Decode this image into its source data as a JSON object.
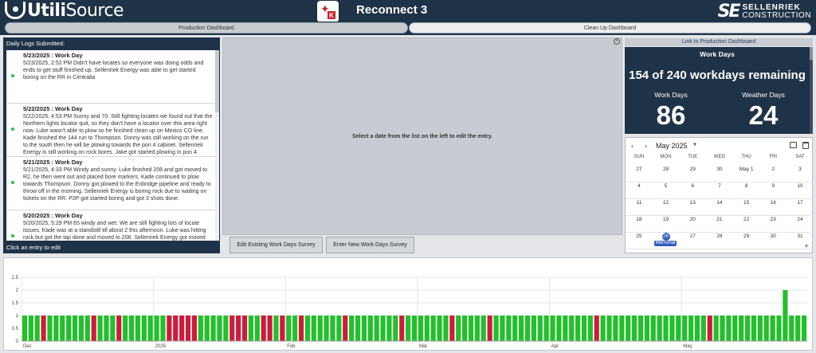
{
  "header": {
    "logo_left_a": "Utili",
    "logo_left_b": "Source",
    "app_title": "Reconnect 3",
    "app_icon_letter": "K",
    "logo_right_mark": "SE",
    "logo_right_name1": "SELLENRIEK",
    "logo_right_name2": "CONSTRUCTION"
  },
  "tabs": {
    "production": "Production Dashboard",
    "cleanup": "Clean Up Dashboard"
  },
  "logs": {
    "heading": "Daily Logs Submitted:",
    "footer": "Click an entry to edit",
    "entries": [
      {
        "title": "5/23/2025 : Work Day",
        "text": "5/23/2025, 2:52 PM Didn't have locates so everyone was doing odds and ends to get stuff finished up. Sellenriek Energy was able to get started boring on the RR in Centralia"
      },
      {
        "title": "5/22/2025 : Work Day",
        "text": "5/22/2025, 4:53 PM Sunny and 70. Still fighting locates we found out that the Northern lights locator quit, so they don't have a locator over this area right now. Luke wasn't able to plow so he finished clean up on Mexico CO line. Kade finished the 144 run to Thompson. Donny was still working on the run to the south then he will be plowing towards the pon 4 cabinet. Sellenriek Energy is still working on rock bores. Jake got started plowing in pon 4."
      },
      {
        "title": "5/21/2025 : Work Day",
        "text": "5/21/2025, 4:33 PM Windy and sunny. Luke finished 208 and got moved to R2, he then went out and placed bore markers. Kade continued to plow towards Thompson. Donny got plowed to the Enbridge pipeline and ready to throw off in the morning. Sellenriek Energy is boring rock due to waiting on tickets on the RR. P2P got started boring and got 3 shots done."
      },
      {
        "title": "5/20/2025 : Work Day",
        "text": "5/20/2025, 5:29 PM 65 windy and wet. We are still fighting lots of locate issues. Kade was at a standstill till about 2 this afternoon. Luke was hitting rock but got the tap done and moved to 208. Sellenriek Energy got moved"
      }
    ]
  },
  "middle": {
    "message": "Select a date from the list on the left to edit the entry.",
    "edit_button": "Edit Existing Work Days Survey",
    "new_button": "Enter New Work Days Survey"
  },
  "workdays": {
    "link": "Link to Production Dashboard",
    "title": "Work Days",
    "remaining": "154 of 240 workdays remaining",
    "work_label": "Work Days",
    "work_value": "86",
    "weather_label": "Weather Days",
    "weather_value": "24"
  },
  "calendar": {
    "month": "May 2025",
    "prev": "‹",
    "next": "›",
    "weekdays": [
      "SUN",
      "MON",
      "TUE",
      "WED",
      "THU",
      "FRI",
      "SAT"
    ],
    "weeks": [
      [
        "27",
        "28",
        "29",
        "30",
        "May 1",
        "2",
        "3"
      ],
      [
        "4",
        "5",
        "6",
        "7",
        "8",
        "9",
        "10"
      ],
      [
        "11",
        "12",
        "13",
        "14",
        "15",
        "16",
        "17"
      ],
      [
        "18",
        "19",
        "20",
        "21",
        "22",
        "23",
        "24"
      ],
      [
        "25",
        "26",
        "27",
        "28",
        "29",
        "30",
        "31"
      ]
    ],
    "today": "26",
    "event_label": "Memorial",
    "plus": "+"
  },
  "chart_data": {
    "type": "bar",
    "title": "",
    "xlabel": "",
    "ylabel": "",
    "ylim": [
      0,
      2.5
    ],
    "yticks": [
      "0",
      "0.5",
      "1",
      "1.5",
      "2",
      "2.5"
    ],
    "x_tick_labels": [
      "Dec",
      "2025",
      "Feb",
      "Mar",
      "Apr",
      "May"
    ],
    "grid": true,
    "series": [
      {
        "name": "",
        "color": "#22c02a",
        "values": [
          1,
          1,
          1,
          0,
          1,
          1,
          1,
          1,
          1,
          1,
          1,
          0,
          1,
          1,
          1,
          0,
          1,
          1,
          1,
          1,
          1,
          1,
          1,
          0,
          0,
          0,
          0,
          0,
          1,
          1,
          1,
          1,
          1,
          0,
          0,
          0,
          1,
          1,
          0,
          0,
          1,
          0,
          1,
          1,
          0,
          1,
          1,
          1,
          1,
          1,
          1,
          0,
          1,
          1,
          1,
          1,
          1,
          1,
          1,
          1,
          0,
          1,
          1,
          1,
          1,
          1,
          1,
          1,
          0,
          1,
          1,
          1,
          1,
          1,
          0,
          1,
          1,
          1,
          1,
          1,
          1,
          1,
          1,
          1,
          1,
          1,
          1,
          1,
          1,
          1,
          1,
          0,
          1,
          1,
          1,
          1,
          1,
          1,
          1,
          1,
          1,
          1,
          1,
          1,
          1,
          1,
          1,
          1,
          1,
          0,
          1,
          1,
          1,
          1,
          1,
          1,
          1,
          1,
          1,
          1,
          1,
          2,
          1,
          1,
          1
        ]
      },
      {
        "name": "",
        "color": "#cc1c3a",
        "values": [
          0,
          0,
          0,
          1,
          0,
          0,
          0,
          0,
          0,
          0,
          0,
          1,
          0,
          0,
          0,
          1,
          0,
          0,
          0,
          0,
          0,
          0,
          0,
          1,
          1,
          1,
          1,
          1,
          0,
          0,
          0,
          0,
          0,
          1,
          1,
          1,
          0,
          0,
          1,
          1,
          0,
          1,
          0,
          0,
          1,
          0,
          0,
          0,
          0,
          0,
          0,
          1,
          0,
          0,
          0,
          0,
          0,
          0,
          0,
          0,
          1,
          0,
          0,
          0,
          0,
          0,
          0,
          0,
          1,
          0,
          0,
          0,
          0,
          0,
          1,
          0,
          0,
          0,
          0,
          0,
          0,
          0,
          0,
          0,
          0,
          0,
          0,
          0,
          0,
          0,
          0,
          1,
          0,
          0,
          0,
          0,
          0,
          0,
          0,
          0,
          0,
          0,
          0,
          0,
          0,
          0,
          0,
          0,
          0,
          1,
          0,
          0,
          0,
          0,
          0,
          0,
          0,
          0,
          0,
          0,
          0,
          0,
          0,
          0,
          0
        ]
      }
    ]
  }
}
